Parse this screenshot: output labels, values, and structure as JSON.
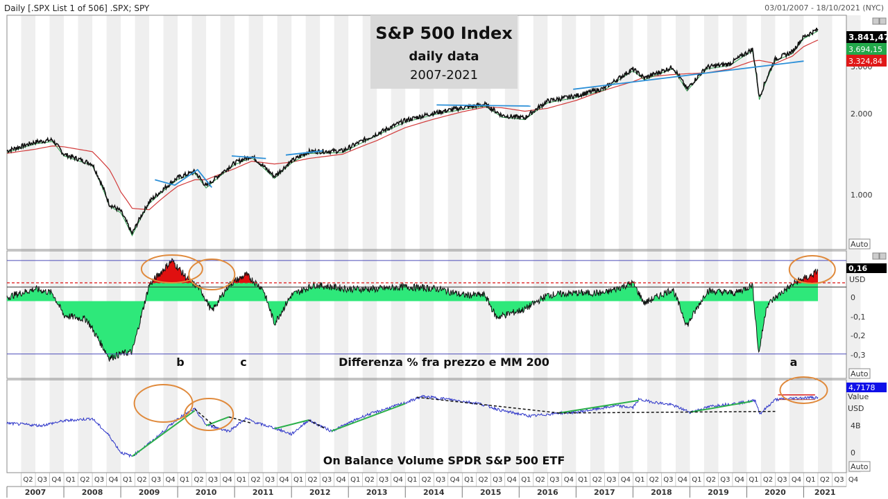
{
  "header": {
    "left_label": "Daily [.SPX List 1 of 506] .SPX; SPY",
    "date_range": "03/01/2007 - 18/10/2021 (NYC)"
  },
  "colors": {
    "price": "#111111",
    "ma_short": "#2e9e4e",
    "ma200": "#d23a3a",
    "trendline": "#2a8fd8",
    "green_fill": "#2ee87a",
    "red_fill": "#e01010",
    "obv": "#2a32c8",
    "obv_trend": "#2bb04a",
    "circle": "#e08a3c"
  },
  "title_box": {
    "line1": "S&P 500 Index",
    "line2": "daily data",
    "line3": "2007-2021"
  },
  "price_panel": {
    "y_ticks": [
      "1.000",
      "2.000",
      "3.000"
    ],
    "last_price": "3.841,47",
    "ma_short_value": "3.694,15",
    "ma200_value": "3.324,84",
    "auto_label": "Auto"
  },
  "diff_panel": {
    "y_ticks": [
      "0",
      "-0,1",
      "-0,2",
      "-0,3"
    ],
    "current_value": "0,16",
    "unit": "USD",
    "auto_label": "Auto",
    "labels": {
      "b": "b",
      "c": "c",
      "a": "a"
    },
    "caption": "Differenza % fra prezzo  e MM 200"
  },
  "obv_panel": {
    "badge_value": "4,7178",
    "value_label": "Value",
    "unit": "USD",
    "y_ticks": [
      "4B",
      "0"
    ],
    "auto_label": "Auto",
    "caption": "On Balance Volume  SPDR S&P 500 ETF"
  },
  "x_axis": {
    "years": [
      "2007",
      "2008",
      "2009",
      "2010",
      "2011",
      "2012",
      "2013",
      "2014",
      "2015",
      "2016",
      "2017",
      "2018",
      "2019",
      "2020",
      "2021"
    ],
    "quarters": [
      "Q2",
      "Q3",
      "Q4",
      "Q1",
      "Q2",
      "Q3",
      "Q4",
      "Q1",
      "Q2",
      "Q3",
      "Q4",
      "Q1",
      "Q2",
      "Q3",
      "Q4",
      "Q1",
      "Q2",
      "Q3",
      "Q4",
      "Q1",
      "Q2",
      "Q3",
      "Q4",
      "Q1",
      "Q2",
      "Q3",
      "Q4",
      "Q1",
      "Q2",
      "Q3",
      "Q4",
      "Q1",
      "Q2",
      "Q3",
      "Q4",
      "Q1",
      "Q2",
      "Q3",
      "Q4",
      "Q1",
      "Q2",
      "Q3",
      "Q4",
      "Q1",
      "Q2",
      "Q3",
      "Q4",
      "Q1",
      "Q2",
      "Q3",
      "Q4",
      "Q1",
      "Q2",
      "Q3",
      "Q4",
      "Q1",
      "Q2",
      "Q3",
      "Q4"
    ]
  },
  "chart_data": [
    {
      "type": "line",
      "title": "S&P 500 Index",
      "scale": "log",
      "ylim": [
        650,
        4300
      ],
      "x": [
        2007.0,
        2007.5,
        2007.8,
        2008.0,
        2008.5,
        2008.8,
        2009.0,
        2009.2,
        2009.5,
        2010.0,
        2010.3,
        2010.5,
        2011.0,
        2011.3,
        2011.7,
        2012.0,
        2012.3,
        2012.9,
        2013.5,
        2014.0,
        2014.5,
        2015.0,
        2015.4,
        2015.7,
        2016.1,
        2016.5,
        2017.0,
        2017.5,
        2018.0,
        2018.2,
        2018.7,
        2018.95,
        2019.3,
        2019.7,
        2020.1,
        2020.22,
        2020.5,
        2020.8,
        2021.0,
        2021.25
      ],
      "series": [
        {
          "values": [
            1420,
            1530,
            1560,
            1380,
            1270,
            900,
            850,
            700,
            920,
            1130,
            1190,
            1050,
            1280,
            1360,
            1140,
            1300,
            1410,
            1420,
            1640,
            1840,
            1960,
            2050,
            2110,
            1920,
            1880,
            2170,
            2270,
            2420,
            2850,
            2640,
            2900,
            2400,
            2900,
            2980,
            3380,
            2230,
            3100,
            3300,
            3750,
            4000
          ]
        },
        {
          "name": "ma200",
          "values": [
            1390,
            1440,
            1480,
            1470,
            1410,
            1210,
            1000,
            870,
            860,
            1050,
            1110,
            1110,
            1220,
            1300,
            1270,
            1290,
            1330,
            1380,
            1550,
            1730,
            1860,
            1980,
            2060,
            2050,
            1990,
            2040,
            2180,
            2380,
            2560,
            2660,
            2720,
            2740,
            2760,
            2850,
            3050,
            3070,
            2990,
            3180,
            3450,
            3650
          ]
        }
      ]
    },
    {
      "type": "area",
      "title": "Differenza % fra prezzo e MM 200",
      "ylim": [
        -0.36,
        0.22
      ],
      "thresholds": [
        0.2,
        0.09,
        0.11,
        -0.26
      ],
      "x": [
        2007.0,
        2007.5,
        2007.8,
        2008.0,
        2008.4,
        2008.8,
        2009.0,
        2009.2,
        2009.5,
        2009.9,
        2010.2,
        2010.4,
        2010.6,
        2010.9,
        2011.2,
        2011.5,
        2011.7,
        2012.0,
        2012.4,
        2013.0,
        2013.5,
        2014.0,
        2014.6,
        2015.0,
        2015.4,
        2015.6,
        2016.1,
        2016.5,
        2017.0,
        2017.5,
        2018.0,
        2018.2,
        2018.7,
        2018.95,
        2019.3,
        2019.8,
        2020.1,
        2020.21,
        2020.35,
        2020.6,
        2020.9,
        2021.1,
        2021.25
      ],
      "values": [
        0.02,
        0.06,
        0.04,
        -0.07,
        -0.09,
        -0.28,
        -0.26,
        -0.25,
        0.08,
        0.2,
        0.1,
        0.06,
        -0.05,
        0.08,
        0.13,
        0.06,
        -0.11,
        0.03,
        0.08,
        0.06,
        0.06,
        0.07,
        0.06,
        0.03,
        0.03,
        -0.08,
        -0.04,
        0.03,
        0.04,
        0.04,
        0.09,
        -0.01,
        0.06,
        -0.12,
        0.05,
        0.04,
        0.08,
        -0.26,
        -0.02,
        0.04,
        0.1,
        0.12,
        0.15
      ]
    },
    {
      "type": "line",
      "title": "On Balance Volume SPDR S&P 500 ETF",
      "ylim": [
        -1.5,
        9.5
      ],
      "x": [
        2007.0,
        2007.6,
        2008.0,
        2008.5,
        2008.8,
        2009.0,
        2009.2,
        2009.6,
        2010.0,
        2010.3,
        2010.5,
        2010.9,
        2011.2,
        2011.4,
        2011.7,
        2012.0,
        2012.3,
        2012.7,
        2013.3,
        2014.0,
        2014.3,
        2014.7,
        2015.3,
        2015.7,
        2016.2,
        2016.7,
        2017.0,
        2017.7,
        2018.0,
        2018.1,
        2018.7,
        2019.0,
        2019.4,
        2019.9,
        2020.15,
        2020.23,
        2020.5,
        2020.9,
        2021.25
      ],
      "series": [
        {
          "values": [
            4.6,
            4.3,
            4.9,
            5.2,
            3.0,
            0.9,
            0.4,
            2.6,
            5.2,
            6.4,
            4.4,
            3.6,
            5.2,
            4.6,
            4.0,
            3.2,
            5.0,
            3.6,
            5.6,
            7.2,
            8.0,
            7.7,
            7.1,
            6.2,
            5.5,
            5.9,
            6.0,
            6.8,
            6.6,
            7.6,
            6.9,
            6.0,
            6.8,
            7.2,
            7.5,
            5.8,
            7.6,
            7.8,
            7.9
          ]
        }
      ]
    }
  ]
}
